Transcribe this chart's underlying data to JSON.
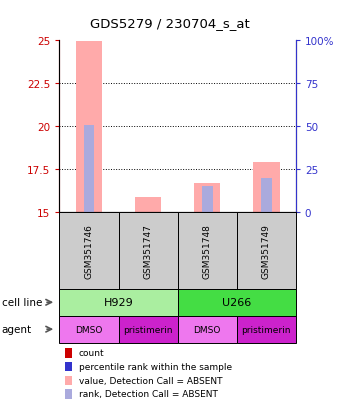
{
  "title": "GDS5279 / 230704_s_at",
  "samples": [
    "GSM351746",
    "GSM351747",
    "GSM351748",
    "GSM351749"
  ],
  "cell_lines": [
    [
      "H929",
      2
    ],
    [
      "U266",
      2
    ]
  ],
  "agents": [
    "DMSO",
    "pristimerin",
    "DMSO",
    "pristimerin"
  ],
  "ylim": [
    15,
    25
  ],
  "yticks_left": [
    15,
    17.5,
    20,
    22.5,
    25
  ],
  "yticks_right_labels": [
    "0",
    "25",
    "50",
    "75",
    "100%"
  ],
  "left_tick_color": "#CC0000",
  "right_tick_color": "#3333CC",
  "bar_value_absent": [
    24.95,
    15.9,
    16.7,
    17.9
  ],
  "bar_rank_absent": [
    20.1,
    null,
    16.5,
    17.0
  ],
  "bar_color_value_absent": "#FFAAAA",
  "bar_color_rank_absent": "#AAAADD",
  "background_color": "#FFFFFF",
  "sample_box_color": "#CCCCCC",
  "cell_line_colors": [
    "#AAEEA0",
    "#44DD44"
  ],
  "agent_colors": [
    "#EE77EE",
    "#CC22CC",
    "#EE77EE",
    "#CC22CC"
  ],
  "legend_colors": [
    "#CC0000",
    "#3333CC",
    "#FFAAAA",
    "#AAAADD"
  ],
  "legend_labels": [
    "count",
    "percentile rank within the sample",
    "value, Detection Call = ABSENT",
    "rank, Detection Call = ABSENT"
  ]
}
